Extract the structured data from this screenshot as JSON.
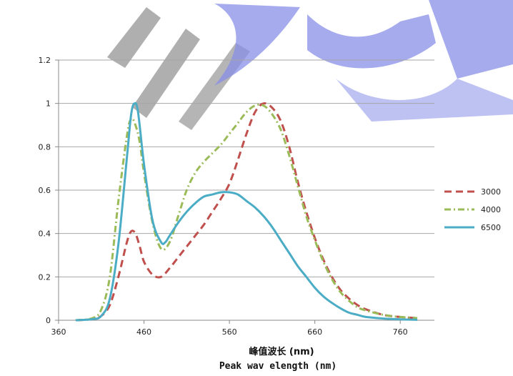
{
  "chart_data": {
    "type": "line",
    "title": "",
    "xlabel": "峰值波长 (nm)",
    "xlabel2": "Peak wav elength (nm)",
    "ylabel": "",
    "xlim": [
      360,
      800
    ],
    "ylim": [
      0,
      1.2
    ],
    "x_ticks": [
      "360",
      "460",
      "560",
      "660",
      "760"
    ],
    "y_ticks": [
      "0",
      "0.2",
      "0.4",
      "0.6",
      "0.8",
      "1",
      "1.2"
    ],
    "grid": true,
    "legend_position": "right",
    "series": [
      {
        "name": "3000",
        "color": "#c0504d",
        "dash": "long-dash",
        "points": [
          [
            380,
            0
          ],
          [
            400,
            0.005
          ],
          [
            410,
            0.02
          ],
          [
            420,
            0.07
          ],
          [
            430,
            0.2
          ],
          [
            440,
            0.36
          ],
          [
            445,
            0.41
          ],
          [
            450,
            0.4
          ],
          [
            455,
            0.34
          ],
          [
            460,
            0.27
          ],
          [
            470,
            0.21
          ],
          [
            480,
            0.2
          ],
          [
            490,
            0.24
          ],
          [
            500,
            0.29
          ],
          [
            510,
            0.34
          ],
          [
            520,
            0.39
          ],
          [
            530,
            0.44
          ],
          [
            540,
            0.5
          ],
          [
            550,
            0.56
          ],
          [
            560,
            0.63
          ],
          [
            570,
            0.74
          ],
          [
            580,
            0.86
          ],
          [
            590,
            0.96
          ],
          [
            600,
            1.0
          ],
          [
            610,
            0.98
          ],
          [
            620,
            0.92
          ],
          [
            630,
            0.8
          ],
          [
            640,
            0.64
          ],
          [
            650,
            0.5
          ],
          [
            660,
            0.38
          ],
          [
            670,
            0.28
          ],
          [
            680,
            0.2
          ],
          [
            690,
            0.14
          ],
          [
            700,
            0.1
          ],
          [
            710,
            0.07
          ],
          [
            720,
            0.05
          ],
          [
            740,
            0.025
          ],
          [
            760,
            0.015
          ],
          [
            780,
            0.01
          ]
        ]
      },
      {
        "name": "4000",
        "color": "#9bbb59",
        "dash": "dash-dot",
        "points": [
          [
            380,
            0
          ],
          [
            400,
            0.01
          ],
          [
            410,
            0.05
          ],
          [
            420,
            0.2
          ],
          [
            430,
            0.55
          ],
          [
            440,
            0.85
          ],
          [
            445,
            0.93
          ],
          [
            450,
            0.9
          ],
          [
            455,
            0.82
          ],
          [
            460,
            0.68
          ],
          [
            470,
            0.45
          ],
          [
            480,
            0.33
          ],
          [
            490,
            0.36
          ],
          [
            500,
            0.48
          ],
          [
            510,
            0.6
          ],
          [
            520,
            0.68
          ],
          [
            530,
            0.73
          ],
          [
            540,
            0.77
          ],
          [
            550,
            0.81
          ],
          [
            560,
            0.86
          ],
          [
            570,
            0.91
          ],
          [
            580,
            0.96
          ],
          [
            590,
            0.99
          ],
          [
            600,
            0.99
          ],
          [
            610,
            0.95
          ],
          [
            620,
            0.88
          ],
          [
            630,
            0.76
          ],
          [
            640,
            0.62
          ],
          [
            650,
            0.48
          ],
          [
            660,
            0.37
          ],
          [
            670,
            0.27
          ],
          [
            680,
            0.19
          ],
          [
            690,
            0.13
          ],
          [
            700,
            0.09
          ],
          [
            710,
            0.06
          ],
          [
            720,
            0.045
          ],
          [
            740,
            0.025
          ],
          [
            760,
            0.015
          ],
          [
            780,
            0.01
          ]
        ]
      },
      {
        "name": "6500",
        "color": "#4bacc6",
        "dash": "solid",
        "points": [
          [
            380,
            0
          ],
          [
            400,
            0.005
          ],
          [
            410,
            0.02
          ],
          [
            420,
            0.1
          ],
          [
            430,
            0.35
          ],
          [
            440,
            0.75
          ],
          [
            445,
            0.95
          ],
          [
            449,
            1.0
          ],
          [
            453,
            0.96
          ],
          [
            460,
            0.72
          ],
          [
            470,
            0.46
          ],
          [
            480,
            0.36
          ],
          [
            485,
            0.36
          ],
          [
            490,
            0.39
          ],
          [
            500,
            0.45
          ],
          [
            510,
            0.5
          ],
          [
            520,
            0.54
          ],
          [
            530,
            0.57
          ],
          [
            540,
            0.58
          ],
          [
            550,
            0.59
          ],
          [
            560,
            0.59
          ],
          [
            570,
            0.58
          ],
          [
            580,
            0.55
          ],
          [
            590,
            0.52
          ],
          [
            600,
            0.48
          ],
          [
            610,
            0.43
          ],
          [
            620,
            0.37
          ],
          [
            630,
            0.31
          ],
          [
            640,
            0.25
          ],
          [
            650,
            0.2
          ],
          [
            660,
            0.15
          ],
          [
            670,
            0.11
          ],
          [
            680,
            0.08
          ],
          [
            690,
            0.055
          ],
          [
            700,
            0.035
          ],
          [
            710,
            0.025
          ],
          [
            720,
            0.015
          ],
          [
            740,
            0.008
          ],
          [
            760,
            0.004
          ],
          [
            780,
            0.002
          ]
        ]
      }
    ]
  }
}
